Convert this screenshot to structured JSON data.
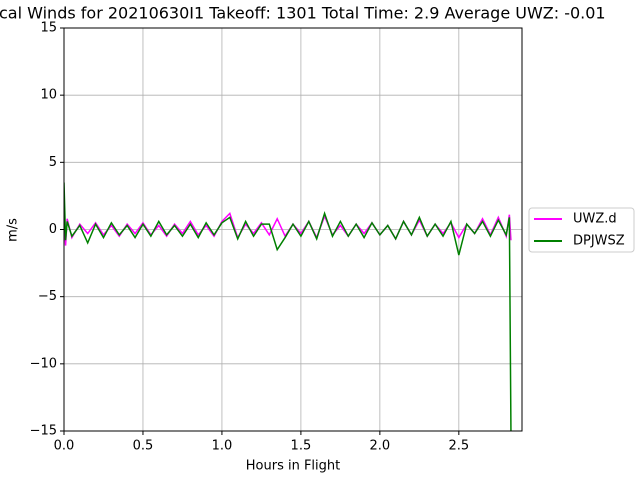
{
  "chart_data": {
    "type": "line",
    "title": "cal Winds for 20210630I1 Takeoff: 1301 Total Time: 2.9 Average UWZ: -0.01",
    "x_label": "Hours in Flight",
    "y_label": "m/s",
    "x": [
      0,
      0.01,
      0.02,
      0.05,
      0.1,
      0.15,
      0.2,
      0.25,
      0.3,
      0.35,
      0.4,
      0.45,
      0.5,
      0.55,
      0.6,
      0.65,
      0.7,
      0.75,
      0.8,
      0.85,
      0.9,
      0.95,
      1.0,
      1.05,
      1.1,
      1.15,
      1.2,
      1.25,
      1.3,
      1.35,
      1.4,
      1.45,
      1.5,
      1.55,
      1.6,
      1.65,
      1.7,
      1.75,
      1.8,
      1.85,
      1.9,
      1.95,
      2.0,
      2.05,
      2.1,
      2.15,
      2.2,
      2.25,
      2.3,
      2.35,
      2.4,
      2.45,
      2.5,
      2.55,
      2.6,
      2.65,
      2.7,
      2.75,
      2.8,
      2.82,
      2.83
    ],
    "series": [
      {
        "name": "UWZ.d",
        "color": "#ff00ff",
        "values": [
          1.1,
          -1.2,
          0.8,
          -0.6,
          0.4,
          -0.3,
          0.5,
          -0.4,
          0.3,
          -0.5,
          0.4,
          -0.3,
          0.5,
          -0.4,
          0.3,
          -0.5,
          0.4,
          -0.3,
          0.6,
          -0.4,
          0.3,
          -0.5,
          0.6,
          1.2,
          -0.6,
          0.4,
          -0.3,
          0.5,
          -0.4,
          0.8,
          -0.5,
          0.4,
          -0.3,
          0.6,
          -0.6,
          1.0,
          -0.4,
          0.3,
          -0.5,
          0.4,
          -0.3,
          0.5,
          -0.4,
          0.3,
          -0.7,
          0.6,
          -0.4,
          0.7,
          -0.5,
          0.4,
          -0.3,
          0.5,
          -0.6,
          0.4,
          -0.3,
          0.8,
          -0.4,
          0.9,
          -0.5,
          1.1,
          -0.8
        ]
      },
      {
        "name": "DPJWSZ",
        "color": "#008000",
        "values": [
          3.5,
          -0.8,
          0.6,
          -0.5,
          0.3,
          -1.0,
          0.4,
          -0.6,
          0.5,
          -0.4,
          0.3,
          -0.6,
          0.4,
          -0.5,
          0.6,
          -0.4,
          0.3,
          -0.5,
          0.4,
          -0.6,
          0.5,
          -0.4,
          0.5,
          0.9,
          -0.7,
          0.6,
          -0.5,
          0.4,
          0.4,
          -1.5,
          -0.6,
          0.4,
          -0.5,
          0.6,
          -0.7,
          1.2,
          -0.5,
          0.6,
          -0.5,
          0.4,
          -0.6,
          0.5,
          -0.4,
          0.3,
          -0.7,
          0.6,
          -0.4,
          0.9,
          -0.5,
          0.4,
          -0.5,
          0.6,
          -1.9,
          0.4,
          -0.3,
          0.6,
          -0.5,
          0.7,
          -0.4,
          0.9,
          -15
        ]
      }
    ],
    "xlim": [
      0,
      2.9
    ],
    "xticks": [
      {
        "value": 0,
        "label": "0.0"
      },
      0.5,
      {
        "value": 1,
        "label": "1.0"
      },
      1.5,
      {
        "value": 2,
        "label": "2.0"
      },
      2.5
    ],
    "ylim": [
      -15,
      15
    ],
    "yticks": [
      {
        "value": -15,
        "label": "−15"
      },
      {
        "value": -10,
        "label": "−10"
      },
      {
        "value": -5,
        "label": "−5"
      },
      0,
      5,
      10,
      15
    ],
    "grid": true,
    "legend": "right"
  }
}
